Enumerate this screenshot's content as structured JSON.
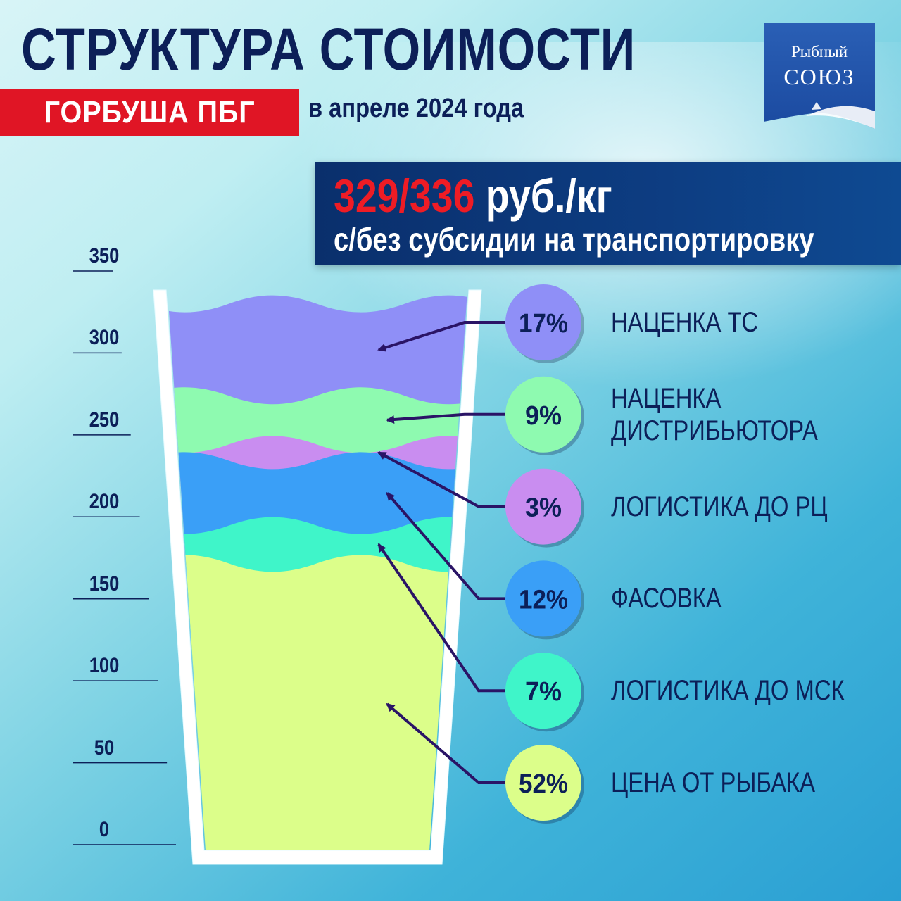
{
  "header": {
    "title": "СТРУКТУРА СТОИМОСТИ",
    "product": "ГОРБУША ПБГ",
    "date": "в апреле 2024 года"
  },
  "logo": {
    "line1": "Рыбный",
    "line2": "СОЮЗ"
  },
  "price": {
    "value": "329/336",
    "unit": " руб./кг",
    "note": "с/без субсидии на транспортировку"
  },
  "chart_data": {
    "type": "stacked-bar",
    "title": "",
    "ylim": [
      0,
      350
    ],
    "yticks": [
      "0",
      "50",
      "100",
      "150",
      "200",
      "250",
      "300",
      "350"
    ],
    "segments": [
      {
        "label": "ЦЕНА ОТ РЫБАКА",
        "percent": 52,
        "percent_label": "52%",
        "color": "#dcfe8a"
      },
      {
        "label": "ЛОГИСТИКА ДО МСК",
        "percent": 7,
        "percent_label": "7%",
        "color": "#3ff5c9"
      },
      {
        "label": "ФАСОВКА",
        "percent": 12,
        "percent_label": "12%",
        "color": "#3a9ff7"
      },
      {
        "label": "ЛОГИСТИКА ДО РЦ",
        "percent": 3,
        "percent_label": "3%",
        "color": "#c98df0"
      },
      {
        "label_line1": "НАЦЕНКА",
        "label_line2": "ДИСТРИБЬЮТОРА",
        "percent": 9,
        "percent_label": "9%",
        "color": "#8efab0"
      },
      {
        "label": "НАЦЕНКА ТС",
        "percent": 17,
        "percent_label": "17%",
        "color": "#8f8ff7"
      }
    ]
  }
}
